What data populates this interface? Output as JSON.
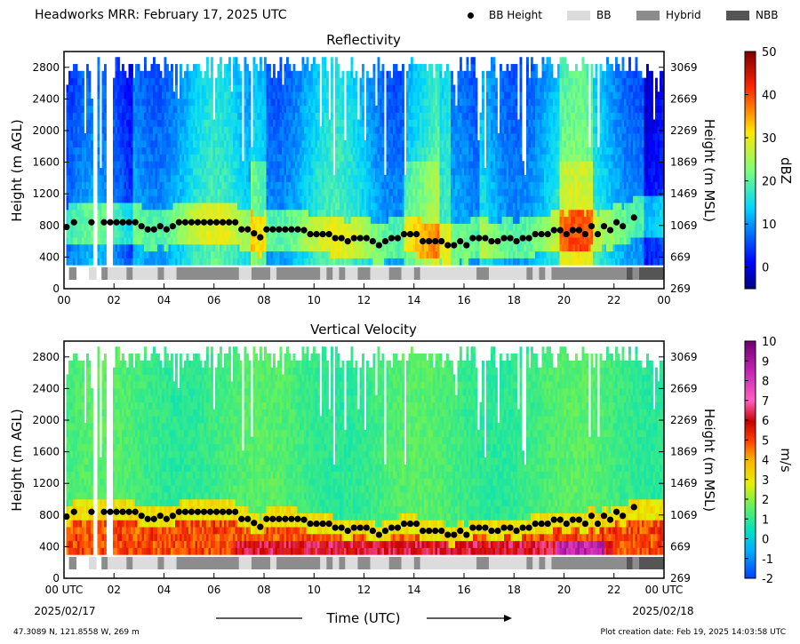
{
  "header": {
    "title": "Headworks MRR:  February 17, 2025 UTC"
  },
  "legend": [
    {
      "label": "BB Height",
      "kind": "dot",
      "color": "#000000"
    },
    {
      "label": "BB",
      "kind": "swatch",
      "color": "#dcdcdc"
    },
    {
      "label": "Hybrid",
      "kind": "swatch",
      "color": "#8c8c8c"
    },
    {
      "label": "NBB",
      "kind": "swatch",
      "color": "#555555"
    }
  ],
  "colors": {
    "bb": "#dcdcdc",
    "hybrid": "#8c8c8c",
    "nbb": "#555555",
    "bb_height": "#000000"
  },
  "footer": {
    "location": "47.3089 N, 121.8558 W, 269 m",
    "creation": "Plot creation date: Feb 19, 2025 14:03:58 UTC",
    "x_title": "Time (UTC)",
    "start_date": "2025/02/17",
    "end_date": "2025/02/18"
  },
  "chart_data": [
    {
      "type": "heatmap",
      "title": "Reflectivity",
      "ylabel": "Height (m AGL)",
      "ylabel_right": "Height (m MSL)",
      "xlim": [
        0,
        24
      ],
      "ylim": [
        0,
        3000
      ],
      "x_tick_labels": [
        "00",
        "02",
        "04",
        "06",
        "08",
        "10",
        "12",
        "14",
        "16",
        "18",
        "20",
        "22",
        "00"
      ],
      "y_ticks": [
        0,
        400,
        800,
        1200,
        1600,
        2000,
        2400,
        2800
      ],
      "y_ticks_right": [
        269,
        669,
        1069,
        1469,
        1869,
        2269,
        2669,
        3069
      ],
      "colorbar": {
        "label": "dBZ",
        "min": -5,
        "max": 50,
        "ticks": [
          0,
          10,
          20,
          30,
          40,
          50
        ],
        "colormap": "jet"
      },
      "bb_height": {
        "x": [
          0.1,
          0.4,
          1.1,
          1.6,
          1.85,
          2.1,
          2.35,
          2.6,
          2.85,
          3.1,
          3.35,
          3.6,
          3.85,
          4.1,
          4.35,
          4.6,
          4.85,
          5.1,
          5.35,
          5.6,
          5.85,
          6.1,
          6.35,
          6.6,
          6.85,
          7.1,
          7.35,
          7.6,
          7.85,
          8.1,
          8.35,
          8.6,
          8.85,
          9.1,
          9.35,
          9.6,
          9.85,
          10.1,
          10.35,
          10.6,
          10.85,
          11.1,
          11.35,
          11.6,
          11.85,
          12.1,
          12.35,
          12.6,
          12.85,
          13.1,
          13.35,
          13.6,
          13.85,
          14.1,
          14.35,
          14.6,
          14.85,
          15.1,
          15.35,
          15.6,
          15.85,
          16.1,
          16.35,
          16.6,
          16.85,
          17.1,
          17.35,
          17.6,
          17.85,
          18.1,
          18.35,
          18.6,
          18.85,
          19.1,
          19.35,
          19.6,
          19.85,
          20.1,
          20.35,
          20.6,
          20.85,
          21.1,
          21.35,
          21.6,
          21.85,
          22.1,
          22.35,
          22.8
        ],
        "y": [
          780,
          840,
          840,
          840,
          840,
          840,
          840,
          840,
          840,
          790,
          750,
          750,
          790,
          750,
          790,
          840,
          840,
          840,
          840,
          840,
          840,
          840,
          840,
          840,
          840,
          750,
          750,
          700,
          650,
          750,
          750,
          750,
          750,
          750,
          750,
          740,
          690,
          690,
          690,
          690,
          640,
          640,
          600,
          640,
          640,
          640,
          600,
          550,
          600,
          640,
          640,
          690,
          690,
          690,
          600,
          600,
          600,
          600,
          550,
          550,
          600,
          550,
          640,
          640,
          640,
          600,
          600,
          640,
          640,
          600,
          640,
          640,
          690,
          690,
          690,
          740,
          740,
          690,
          740,
          740,
          690,
          790,
          690,
          790,
          740,
          840,
          790,
          900
        ]
      },
      "classification": [
        {
          "start": 0.2,
          "end": 0.5,
          "type": "Hybrid"
        },
        {
          "start": 1.0,
          "end": 1.3,
          "type": "BB"
        },
        {
          "start": 1.5,
          "end": 1.75,
          "type": "Hybrid"
        },
        {
          "start": 1.75,
          "end": 2.5,
          "type": "BB"
        },
        {
          "start": 2.5,
          "end": 2.75,
          "type": "Hybrid"
        },
        {
          "start": 2.75,
          "end": 3.75,
          "type": "BB"
        },
        {
          "start": 3.75,
          "end": 4.0,
          "type": "Hybrid"
        },
        {
          "start": 4.0,
          "end": 4.5,
          "type": "BB"
        },
        {
          "start": 4.5,
          "end": 7.0,
          "type": "Hybrid"
        },
        {
          "start": 7.0,
          "end": 7.5,
          "type": "BB"
        },
        {
          "start": 7.5,
          "end": 8.25,
          "type": "Hybrid"
        },
        {
          "start": 8.25,
          "end": 8.5,
          "type": "BB"
        },
        {
          "start": 8.5,
          "end": 10.25,
          "type": "Hybrid"
        },
        {
          "start": 10.25,
          "end": 10.5,
          "type": "BB"
        },
        {
          "start": 10.5,
          "end": 10.75,
          "type": "Hybrid"
        },
        {
          "start": 10.75,
          "end": 11.0,
          "type": "BB"
        },
        {
          "start": 11.0,
          "end": 11.25,
          "type": "Hybrid"
        },
        {
          "start": 11.25,
          "end": 11.75,
          "type": "BB"
        },
        {
          "start": 11.75,
          "end": 12.25,
          "type": "Hybrid"
        },
        {
          "start": 12.25,
          "end": 13.0,
          "type": "BB"
        },
        {
          "start": 13.0,
          "end": 13.5,
          "type": "Hybrid"
        },
        {
          "start": 13.5,
          "end": 14.0,
          "type": "BB"
        },
        {
          "start": 14.0,
          "end": 14.25,
          "type": "Hybrid"
        },
        {
          "start": 14.25,
          "end": 16.5,
          "type": "BB"
        },
        {
          "start": 16.5,
          "end": 17.0,
          "type": "Hybrid"
        },
        {
          "start": 17.0,
          "end": 18.5,
          "type": "BB"
        },
        {
          "start": 18.5,
          "end": 18.75,
          "type": "Hybrid"
        },
        {
          "start": 18.75,
          "end": 19.0,
          "type": "BB"
        },
        {
          "start": 19.0,
          "end": 19.25,
          "type": "Hybrid"
        },
        {
          "start": 19.25,
          "end": 19.5,
          "type": "BB"
        },
        {
          "start": 19.5,
          "end": 22.5,
          "type": "Hybrid"
        },
        {
          "start": 22.5,
          "end": 22.75,
          "type": "NBB"
        },
        {
          "start": 22.75,
          "end": 23.0,
          "type": "Hybrid"
        },
        {
          "start": 23.0,
          "end": 24.0,
          "type": "NBB"
        }
      ]
    },
    {
      "type": "heatmap",
      "title": "Vertical Velocity",
      "ylabel": "Height (m AGL)",
      "ylabel_right": "Height (m MSL)",
      "xlabel": "Time (UTC)",
      "xlim": [
        0,
        24
      ],
      "ylim": [
        0,
        3000
      ],
      "x_tick_labels": [
        "00 UTC",
        "02",
        "04",
        "06",
        "08",
        "10",
        "12",
        "14",
        "16",
        "18",
        "20",
        "22",
        "00 UTC"
      ],
      "y_ticks": [
        0,
        400,
        800,
        1200,
        1600,
        2000,
        2400,
        2800
      ],
      "y_ticks_right": [
        269,
        669,
        1069,
        1469,
        1869,
        2269,
        2669,
        3069
      ],
      "colorbar": {
        "label": "m/s",
        "min": -2,
        "max": 10,
        "ticks": [
          -2,
          -1,
          0,
          1,
          2,
          3,
          4,
          5,
          6,
          7,
          8,
          9,
          10
        ],
        "colormap": "velocity"
      },
      "bb_height": "same as Reflectivity",
      "classification": "same as Reflectivity"
    }
  ]
}
